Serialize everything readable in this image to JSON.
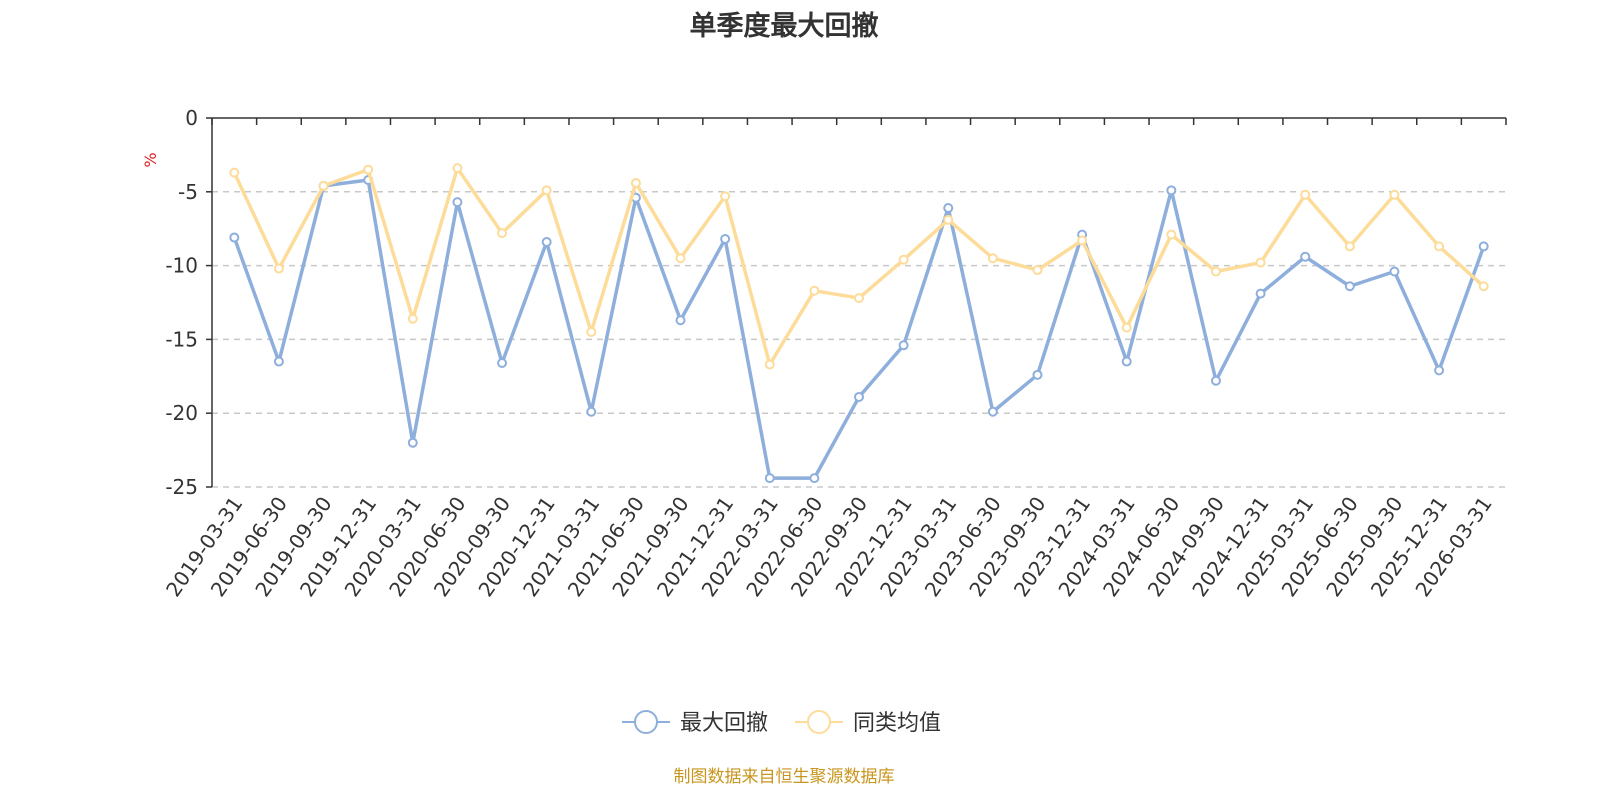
{
  "chart_data": {
    "type": "line",
    "title": "单季度最大回撤",
    "ylabel": "%",
    "ylim": [
      -25,
      0
    ],
    "yticks": [
      0,
      -5,
      -10,
      -15,
      -20,
      -25
    ],
    "grid": true,
    "legend_position": "bottom",
    "categories": [
      "2019-03-31",
      "2019-06-30",
      "2019-09-30",
      "2019-12-31",
      "2020-03-31",
      "2020-06-30",
      "2020-09-30",
      "2020-12-31",
      "2021-03-31",
      "2021-06-30",
      "2021-09-30",
      "2021-12-31",
      "2022-03-31",
      "2022-06-30",
      "2022-09-30",
      "2022-12-31",
      "2023-03-31",
      "2023-06-30",
      "2023-09-30",
      "2023-12-31",
      "2024-03-31",
      "2024-06-30",
      "2024-09-30",
      "2024-12-31",
      "2025-03-31",
      "2025-06-30",
      "2025-09-30",
      "2025-12-31",
      "2026-03-31"
    ],
    "series": [
      {
        "name": "最大回撤",
        "color": "#8eaedc",
        "values": [
          -8.1,
          -16.5,
          -4.6,
          -4.2,
          -22.0,
          -5.7,
          -16.6,
          -8.4,
          -19.9,
          -5.4,
          -13.7,
          -8.2,
          -24.4,
          -24.4,
          -18.9,
          -15.4,
          -6.1,
          -19.9,
          -17.4,
          -7.9,
          -16.5,
          -4.9,
          -17.8,
          -11.9,
          -9.4,
          -11.4,
          -10.4,
          -17.1,
          -8.7
        ]
      },
      {
        "name": "同类均值",
        "color": "#fddc99",
        "values": [
          -3.7,
          -10.2,
          -4.6,
          -3.5,
          -13.6,
          -3.4,
          -7.8,
          -4.9,
          -14.5,
          -4.4,
          -9.5,
          -5.3,
          -16.7,
          -11.7,
          -12.2,
          -9.6,
          -6.9,
          -9.5,
          -10.3,
          -8.3,
          -14.2,
          -7.9,
          -10.4,
          -9.8,
          -5.2,
          -8.7,
          -5.2,
          -8.7,
          -11.4
        ]
      }
    ]
  },
  "source_note": "制图数据来自恒生聚源数据库"
}
